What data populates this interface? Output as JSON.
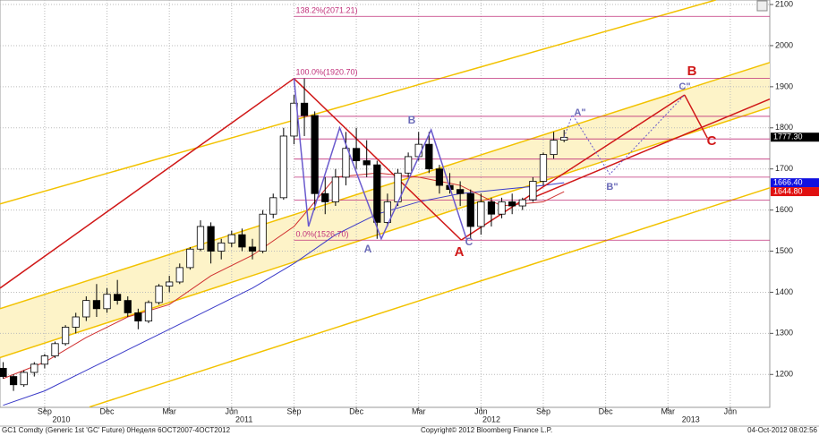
{
  "chart_data": {
    "type": "candlestick",
    "title": "GC1 Comdty (Generic 1st 'GC' Future) 0Неделя 6OCT2007-4OCT2012",
    "copyright": "Copyright© 2012 Bloomberg Finance L.P.",
    "timestamp": "04-Oct-2012 08:02:56",
    "xlim": [
      5.85,
      42.9
    ],
    "ylim": [
      1120,
      2111
    ],
    "yticks": [
      1200,
      1300,
      1400,
      1500,
      1600,
      1700,
      1800,
      1900,
      2000,
      2100
    ],
    "xticks": [
      {
        "value": 8,
        "label": "Sep"
      },
      {
        "value": 11,
        "label": "Dec"
      },
      {
        "value": 14,
        "label": "Mar"
      },
      {
        "value": 17,
        "label": "Jun"
      },
      {
        "value": 20,
        "label": "Sep"
      },
      {
        "value": 23,
        "label": "Dec"
      },
      {
        "value": 26,
        "label": "Mar"
      },
      {
        "value": 29,
        "label": "Jun"
      },
      {
        "value": 32,
        "label": "Sep"
      },
      {
        "value": 35,
        "label": "Dec"
      },
      {
        "value": 38,
        "label": "Mar"
      },
      {
        "value": 41,
        "label": "Jun"
      }
    ],
    "year_ticks": [
      {
        "value": 8.8,
        "label": "2010"
      },
      {
        "value": 17.6,
        "label": "2011"
      },
      {
        "value": 29.5,
        "label": "2012"
      },
      {
        "value": 39.1,
        "label": "2013"
      }
    ],
    "grid": true,
    "x": [
      6,
      6.5,
      7,
      7.5,
      8,
      8.5,
      9,
      9.5,
      10,
      10.5,
      11,
      11.5,
      12,
      12.5,
      13,
      13.5,
      14,
      14.5,
      15,
      15.5,
      16,
      16.5,
      17,
      17.5,
      18,
      18.5,
      19,
      19.5,
      20,
      20.5,
      21,
      21.5,
      22,
      22.5,
      23,
      23.5,
      24,
      24.5,
      25,
      25.5,
      26,
      26.5,
      27,
      27.5,
      28,
      28.5,
      29,
      29.5,
      30,
      30.5,
      31,
      31.5,
      32,
      32.5,
      33
    ],
    "ohlc": [
      [
        1215,
        1230,
        1190,
        1195
      ],
      [
        1195,
        1200,
        1160,
        1175
      ],
      [
        1175,
        1210,
        1170,
        1205
      ],
      [
        1205,
        1230,
        1195,
        1225
      ],
      [
        1225,
        1250,
        1215,
        1245
      ],
      [
        1245,
        1280,
        1240,
        1275
      ],
      [
        1275,
        1320,
        1270,
        1315
      ],
      [
        1315,
        1350,
        1300,
        1340
      ],
      [
        1340,
        1390,
        1330,
        1380
      ],
      [
        1380,
        1420,
        1340,
        1360
      ],
      [
        1360,
        1410,
        1350,
        1395
      ],
      [
        1395,
        1430,
        1370,
        1380
      ],
      [
        1380,
        1390,
        1340,
        1350
      ],
      [
        1350,
        1360,
        1310,
        1330
      ],
      [
        1330,
        1380,
        1325,
        1375
      ],
      [
        1375,
        1420,
        1370,
        1415
      ],
      [
        1415,
        1440,
        1400,
        1425
      ],
      [
        1425,
        1470,
        1420,
        1460
      ],
      [
        1460,
        1510,
        1455,
        1505
      ],
      [
        1505,
        1575,
        1500,
        1560
      ],
      [
        1560,
        1570,
        1470,
        1500
      ],
      [
        1500,
        1530,
        1480,
        1520
      ],
      [
        1520,
        1550,
        1510,
        1540
      ],
      [
        1540,
        1555,
        1500,
        1510
      ],
      [
        1510,
        1530,
        1480,
        1500
      ],
      [
        1500,
        1600,
        1495,
        1590
      ],
      [
        1590,
        1640,
        1580,
        1630
      ],
      [
        1630,
        1800,
        1625,
        1780
      ],
      [
        1780,
        1880,
        1760,
        1860
      ],
      [
        1860,
        1920,
        1780,
        1830
      ],
      [
        1830,
        1840,
        1600,
        1640
      ],
      [
        1640,
        1680,
        1590,
        1620
      ],
      [
        1620,
        1700,
        1610,
        1680
      ],
      [
        1680,
        1790,
        1660,
        1750
      ],
      [
        1750,
        1800,
        1700,
        1720
      ],
      [
        1720,
        1770,
        1680,
        1710
      ],
      [
        1710,
        1720,
        1530,
        1570
      ],
      [
        1570,
        1640,
        1560,
        1620
      ],
      [
        1620,
        1700,
        1610,
        1690
      ],
      [
        1690,
        1740,
        1680,
        1730
      ],
      [
        1730,
        1790,
        1720,
        1760
      ],
      [
        1760,
        1790,
        1690,
        1700
      ],
      [
        1700,
        1710,
        1640,
        1660
      ],
      [
        1660,
        1690,
        1640,
        1650
      ],
      [
        1650,
        1670,
        1610,
        1640
      ],
      [
        1640,
        1650,
        1530,
        1560
      ],
      [
        1560,
        1640,
        1540,
        1620
      ],
      [
        1620,
        1630,
        1560,
        1590
      ],
      [
        1590,
        1630,
        1580,
        1620
      ],
      [
        1620,
        1640,
        1590,
        1610
      ],
      [
        1610,
        1630,
        1600,
        1625
      ],
      [
        1625,
        1680,
        1620,
        1670
      ],
      [
        1670,
        1740,
        1660,
        1735
      ],
      [
        1735,
        1790,
        1725,
        1770
      ],
      [
        1770,
        1795,
        1765,
        1777
      ]
    ],
    "last_price": 1777.3,
    "last_price_label": "1777.30",
    "series": [
      {
        "color": "#3b3bc8",
        "x": [
          6,
          8,
          10,
          12,
          14,
          16,
          18,
          20,
          22,
          24,
          26,
          28,
          30,
          32,
          33
        ],
        "values": [
          1125,
          1160,
          1210,
          1260,
          1310,
          1360,
          1410,
          1470,
          1540,
          1590,
          1620,
          1640,
          1650,
          1660,
          1666.4
        ],
        "last_label": "1666.40"
      },
      {
        "color": "#d03030",
        "x": [
          6,
          8,
          10,
          12,
          14,
          16,
          18,
          20,
          22,
          24,
          26,
          28,
          30,
          32,
          33
        ],
        "values": [
          1190,
          1230,
          1290,
          1340,
          1370,
          1440,
          1490,
          1560,
          1680,
          1690,
          1680,
          1660,
          1610,
          1620,
          1644.8
        ],
        "last_label": "1644.80"
      }
    ],
    "channel_color": "#f2c200",
    "channels": [
      [
        5.85,
        1615,
        40.3,
        2111
      ],
      [
        5.85,
        1360,
        42.9,
        1959
      ],
      [
        5.85,
        1241,
        42.9,
        1850
      ],
      [
        10.16,
        1121,
        42.9,
        1654
      ]
    ],
    "red_lines": [
      [
        5.85,
        1410,
        20,
        1920
      ],
      [
        20,
        1920,
        28.05,
        1527
      ],
      [
        28.05,
        1527,
        38.8,
        1880
      ],
      [
        38.8,
        1880,
        39.9,
        1775
      ],
      [
        31.5,
        1630,
        42.9,
        1870
      ]
    ],
    "purple_path": {
      "x": [
        20,
        20.7,
        22.2,
        24.2,
        26.6,
        28.3
      ],
      "values": [
        1920,
        1560,
        1800,
        1530,
        1795,
        1530
      ]
    },
    "projection_path": {
      "x": [
        33,
        33.4,
        35.2,
        38.8
      ],
      "values": [
        1777,
        1832,
        1687,
        1880
      ]
    },
    "fib_levels": [
      {
        "value": 2071.21,
        "label": "138.2%(2071.21)"
      },
      {
        "value": 1920.7,
        "label": "100.0%(1920.70)"
      },
      {
        "value": 1828
      },
      {
        "value": 1773
      },
      {
        "value": 1724
      },
      {
        "value": 1680
      },
      {
        "value": 1624
      },
      {
        "value": 1526.7,
        "label": "0.0%(1526.70)"
      }
    ],
    "wave_labels": {
      "purple": [
        "A",
        "B",
        "C"
      ],
      "red": [
        "A",
        "B",
        "C"
      ],
      "projection": [
        "A\"",
        "B\"",
        "C\""
      ]
    }
  }
}
